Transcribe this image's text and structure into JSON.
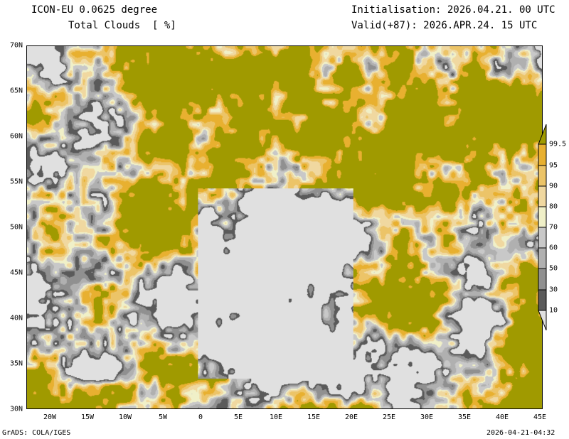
{
  "header": {
    "model": "ICON-EU 0.0625 degree",
    "variable": "Total Clouds  [ %]",
    "init": "Initialisation: 2026.04.21. 00 UTC",
    "valid": "Valid(+87): 2026.APR.24. 15 UTC"
  },
  "footer": {
    "left": "GrADS: COLA/IGES",
    "right": "2026-04-21-04:32"
  },
  "lat_labels": [
    "70N",
    "65N",
    "60N",
    "55N",
    "50N",
    "45N",
    "40N",
    "35N",
    "30N"
  ],
  "lon_labels": [
    "20W",
    "15W",
    "10W",
    "5W",
    "0",
    "5E",
    "10E",
    "15E",
    "20E",
    "25E",
    "30E",
    "35E",
    "40E",
    "45E"
  ],
  "colorbar": {
    "labels": [
      "99.5",
      "95",
      "90",
      "80",
      "70",
      "60",
      "50",
      "30",
      "10"
    ],
    "colors": [
      "#a09a00",
      "#e8b030",
      "#ecc468",
      "#f0d8a0",
      "#f0f0c8",
      "#c8c8c8",
      "#b0b0b0",
      "#909090",
      "#5a5a5a",
      "#e0e0e0"
    ]
  }
}
